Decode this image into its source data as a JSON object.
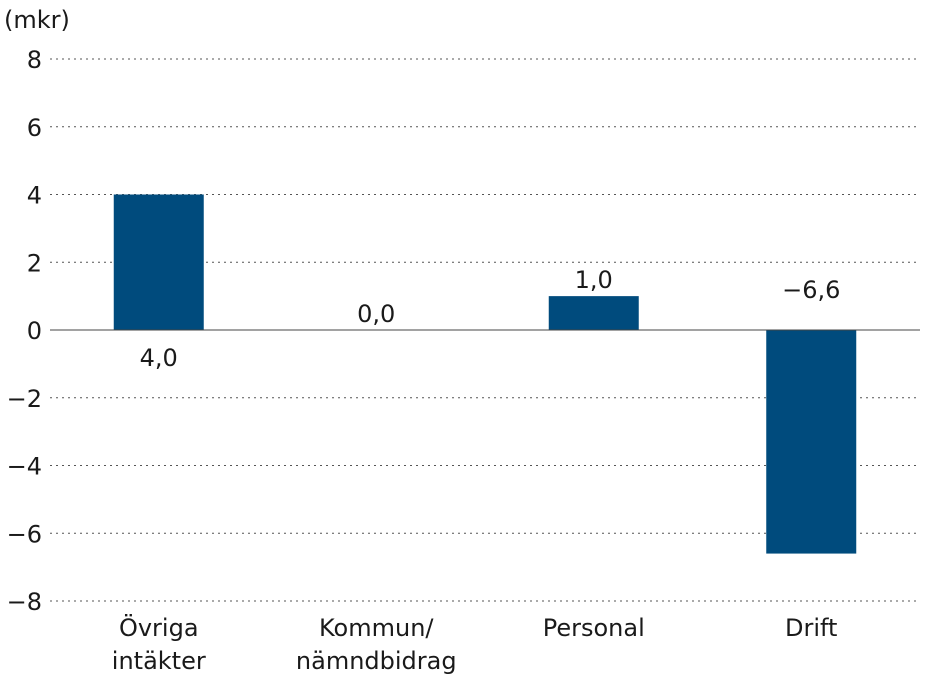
{
  "chart_data": {
    "type": "bar",
    "unit": "(mkr)",
    "categories": [
      [
        "Övriga",
        "intäkter"
      ],
      [
        "Kommun/",
        "nämndbidrag"
      ],
      [
        "Personal"
      ],
      [
        "Drift"
      ]
    ],
    "values": [
      4.0,
      0.0,
      1.0,
      -6.6
    ],
    "data_labels": [
      "4,0",
      "0,0",
      "1,0",
      "−6,6"
    ],
    "ylim": [
      -8,
      8
    ],
    "yticks": [
      8,
      6,
      4,
      2,
      0,
      -2,
      -4,
      -6,
      -8
    ],
    "ytick_labels": [
      "8",
      "6",
      "4",
      "2",
      "0",
      "−2",
      "−4",
      "−6",
      "−8"
    ],
    "bar_color": "#004b7d",
    "grid": true
  }
}
